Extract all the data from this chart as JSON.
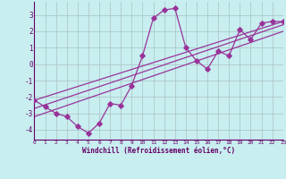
{
  "x_data": [
    0,
    1,
    2,
    3,
    4,
    5,
    6,
    7,
    8,
    9,
    10,
    11,
    12,
    13,
    14,
    15,
    16,
    17,
    18,
    19,
    20,
    21,
    22,
    23
  ],
  "y_main": [
    -2.2,
    -2.6,
    -3.0,
    -3.2,
    -3.8,
    -4.2,
    -3.6,
    -2.4,
    -2.5,
    -1.3,
    0.5,
    2.8,
    3.3,
    3.4,
    1.0,
    0.2,
    -0.3,
    0.8,
    0.5,
    2.1,
    1.5,
    2.5,
    2.6,
    2.6
  ],
  "reg_lines": [
    {
      "x0": 0,
      "y0": -2.2,
      "x1": 23,
      "y1": 2.6
    },
    {
      "x0": 0,
      "y0": -2.7,
      "x1": 23,
      "y1": 2.4
    },
    {
      "x0": 0,
      "y0": -3.2,
      "x1": 23,
      "y1": 2.0
    }
  ],
  "line_color": "#993399",
  "bg_color": "#c8eef0",
  "grid_color": "#b0c8c8",
  "axis_color": "#660066",
  "label_color": "#660066",
  "ylim": [
    -4.6,
    3.8
  ],
  "xlim": [
    0,
    23
  ],
  "xlabel": "Windchill (Refroidissement éolien,°C)",
  "yticks": [
    -4,
    -3,
    -2,
    -1,
    0,
    1,
    2,
    3
  ],
  "xticks": [
    0,
    1,
    2,
    3,
    4,
    5,
    6,
    7,
    8,
    9,
    10,
    11,
    12,
    13,
    14,
    15,
    16,
    17,
    18,
    19,
    20,
    21,
    22,
    23
  ]
}
